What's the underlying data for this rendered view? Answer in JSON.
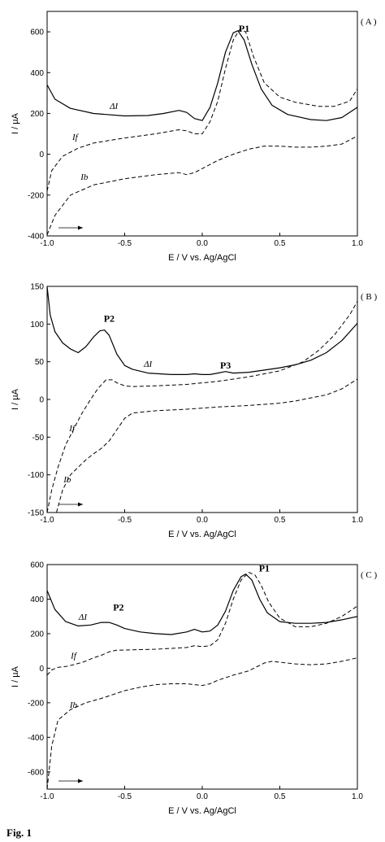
{
  "caption": "Fig. 1",
  "chart_data": [
    {
      "type": "line",
      "panel_label": "( A )",
      "xlabel": "E / V vs. Ag/AgCl",
      "ylabel": "I / µA",
      "xlim": [
        -1.0,
        1.0
      ],
      "ylim": [
        -400,
        700
      ],
      "xticks": [
        "-1.0",
        "-0.5",
        "0.0",
        "0.5",
        "1.0"
      ],
      "yticks": [
        "-400",
        "-200",
        "0",
        "200",
        "400",
        "600"
      ],
      "ytick_values": [
        -400,
        -200,
        0,
        200,
        400,
        600
      ],
      "grid": false,
      "series": [
        {
          "name": "ΔI",
          "style": "solid",
          "x": [
            -1.0,
            -0.95,
            -0.85,
            -0.7,
            -0.5,
            -0.35,
            -0.25,
            -0.15,
            -0.1,
            -0.05,
            0.0,
            0.05,
            0.1,
            0.15,
            0.2,
            0.23,
            0.27,
            0.32,
            0.38,
            0.45,
            0.55,
            0.7,
            0.8,
            0.9,
            1.0
          ],
          "y": [
            340,
            270,
            225,
            200,
            188,
            190,
            200,
            215,
            205,
            175,
            165,
            230,
            350,
            500,
            595,
            605,
            560,
            440,
            320,
            240,
            195,
            170,
            165,
            180,
            230
          ]
        },
        {
          "name": "If",
          "style": "dashed",
          "x": [
            -1.0,
            -0.97,
            -0.9,
            -0.8,
            -0.7,
            -0.5,
            -0.3,
            -0.15,
            -0.1,
            -0.05,
            0.0,
            0.05,
            0.1,
            0.15,
            0.2,
            0.24,
            0.28,
            0.33,
            0.4,
            0.5,
            0.6,
            0.75,
            0.85,
            0.95,
            1.0
          ],
          "y": [
            -180,
            -80,
            -10,
            30,
            55,
            80,
            100,
            120,
            115,
            100,
            100,
            160,
            260,
            420,
            560,
            610,
            600,
            480,
            350,
            280,
            255,
            235,
            235,
            260,
            320
          ]
        },
        {
          "name": "Ib",
          "style": "dashed",
          "x": [
            -1.0,
            -0.95,
            -0.85,
            -0.7,
            -0.5,
            -0.3,
            -0.15,
            -0.1,
            -0.05,
            0.0,
            0.05,
            0.1,
            0.2,
            0.3,
            0.4,
            0.5,
            0.6,
            0.7,
            0.8,
            0.9,
            1.0
          ],
          "y": [
            -395,
            -300,
            -200,
            -150,
            -120,
            -100,
            -90,
            -100,
            -90,
            -70,
            -50,
            -30,
            0,
            25,
            40,
            40,
            35,
            35,
            40,
            50,
            90
          ]
        }
      ],
      "annotations": [
        {
          "text": "P1",
          "x": 0.27,
          "y": 600,
          "bold": true
        },
        {
          "text": "ΔI",
          "x": -0.57,
          "y": 222
        },
        {
          "text": "If",
          "x": -0.82,
          "y": 70
        },
        {
          "text": "Ib",
          "x": -0.76,
          "y": -125
        }
      ]
    },
    {
      "type": "line",
      "panel_label": "( B )",
      "xlabel": "E / V vs. Ag/AgCl",
      "ylabel": "I / µA",
      "xlim": [
        -1.0,
        1.0
      ],
      "ylim": [
        -150,
        150
      ],
      "xticks": [
        "-1.0",
        "-0.5",
        "0.0",
        "0.5",
        "1.0"
      ],
      "yticks": [
        "-150",
        "-100",
        "-50",
        "0",
        "50",
        "100",
        "150"
      ],
      "ytick_values": [
        -150,
        -100,
        -50,
        0,
        50,
        100,
        150
      ],
      "grid": false,
      "series": [
        {
          "name": "ΔI",
          "style": "solid",
          "x": [
            -1.0,
            -0.98,
            -0.95,
            -0.9,
            -0.85,
            -0.8,
            -0.75,
            -0.7,
            -0.66,
            -0.63,
            -0.6,
            -0.55,
            -0.5,
            -0.45,
            -0.35,
            -0.2,
            -0.1,
            -0.05,
            0.0,
            0.05,
            0.1,
            0.15,
            0.2,
            0.3,
            0.4,
            0.5,
            0.6,
            0.7,
            0.8,
            0.9,
            1.0
          ],
          "y": [
            150,
            112,
            90,
            75,
            67,
            62,
            70,
            83,
            91,
            92,
            85,
            60,
            45,
            40,
            35,
            33,
            33,
            34,
            33,
            33,
            35,
            37,
            35,
            36,
            39,
            42,
            46,
            52,
            62,
            78,
            101
          ]
        },
        {
          "name": "If",
          "style": "dashed",
          "x": [
            -1.0,
            -0.97,
            -0.93,
            -0.88,
            -0.83,
            -0.78,
            -0.72,
            -0.67,
            -0.62,
            -0.58,
            -0.55,
            -0.5,
            -0.45,
            -0.3,
            -0.1,
            0.1,
            0.3,
            0.5,
            0.65,
            0.75,
            0.85,
            0.95,
            1.0
          ],
          "y": [
            -150,
            -120,
            -90,
            -60,
            -40,
            -20,
            0,
            15,
            26,
            26,
            22,
            18,
            17,
            18,
            20,
            24,
            30,
            38,
            50,
            65,
            85,
            112,
            130
          ]
        },
        {
          "name": "Ib",
          "style": "dashed",
          "x": [
            -0.94,
            -0.9,
            -0.85,
            -0.8,
            -0.75,
            -0.7,
            -0.65,
            -0.6,
            -0.55,
            -0.5,
            -0.45,
            -0.4,
            -0.3,
            -0.1,
            0.1,
            0.3,
            0.5,
            0.6,
            0.7,
            0.8,
            0.9,
            1.0
          ],
          "y": [
            -150,
            -120,
            -100,
            -90,
            -80,
            -72,
            -65,
            -55,
            -40,
            -25,
            -18,
            -17,
            -15,
            -13,
            -10,
            -8,
            -5,
            -2,
            2,
            6,
            14,
            27
          ]
        }
      ],
      "annotations": [
        {
          "text": "P2",
          "x": -0.6,
          "y": 103,
          "bold": true
        },
        {
          "text": "P3",
          "x": 0.15,
          "y": 41,
          "bold": true
        },
        {
          "text": "ΔI",
          "x": -0.35,
          "y": 43
        },
        {
          "text": "If",
          "x": -0.84,
          "y": -42
        },
        {
          "text": "Ib",
          "x": -0.87,
          "y": -110
        }
      ]
    },
    {
      "type": "line",
      "panel_label": "( C )",
      "xlabel": "E / V vs. Ag/AgCl",
      "ylabel": "I / µA",
      "xlim": [
        -1.0,
        1.0
      ],
      "ylim": [
        -700,
        600
      ],
      "xticks": [
        "-1.0",
        "-0.5",
        "0.0",
        "0.5",
        "1.0"
      ],
      "yticks": [
        "-600",
        "-400",
        "-200",
        "0",
        "200",
        "400",
        "600"
      ],
      "ytick_values": [
        -600,
        -400,
        -200,
        0,
        200,
        400,
        600
      ],
      "grid": false,
      "series": [
        {
          "name": "ΔI",
          "style": "solid",
          "x": [
            -1.0,
            -0.95,
            -0.88,
            -0.8,
            -0.72,
            -0.65,
            -0.6,
            -0.55,
            -0.5,
            -0.4,
            -0.3,
            -0.2,
            -0.1,
            -0.05,
            0.0,
            0.05,
            0.1,
            0.15,
            0.2,
            0.25,
            0.28,
            0.32,
            0.37,
            0.42,
            0.5,
            0.6,
            0.7,
            0.8,
            0.9,
            1.0
          ],
          "y": [
            450,
            340,
            270,
            245,
            250,
            265,
            265,
            250,
            230,
            210,
            200,
            195,
            210,
            225,
            210,
            215,
            250,
            330,
            450,
            530,
            545,
            510,
            400,
            320,
            270,
            260,
            260,
            265,
            280,
            300
          ]
        },
        {
          "name": "If",
          "style": "dashed",
          "x": [
            -1.0,
            -0.97,
            -0.93,
            -0.88,
            -0.83,
            -0.77,
            -0.7,
            -0.65,
            -0.6,
            -0.55,
            -0.5,
            -0.4,
            -0.3,
            -0.2,
            -0.1,
            -0.05,
            0.0,
            0.05,
            0.1,
            0.15,
            0.2,
            0.25,
            0.3,
            0.34,
            0.38,
            0.43,
            0.5,
            0.6,
            0.7,
            0.8,
            0.9,
            1.0
          ],
          "y": [
            -40,
            -10,
            5,
            10,
            20,
            35,
            60,
            75,
            95,
            105,
            105,
            108,
            110,
            115,
            120,
            130,
            125,
            130,
            165,
            260,
            400,
            510,
            555,
            540,
            480,
            380,
            290,
            240,
            240,
            260,
            300,
            360
          ]
        },
        {
          "name": "Ib",
          "style": "dashed",
          "x": [
            -1.0,
            -0.97,
            -0.93,
            -0.85,
            -0.75,
            -0.65,
            -0.55,
            -0.5,
            -0.4,
            -0.3,
            -0.2,
            -0.1,
            -0.05,
            0.0,
            0.05,
            0.1,
            0.2,
            0.3,
            0.4,
            0.45,
            0.5,
            0.6,
            0.7,
            0.8,
            0.9,
            1.0
          ],
          "y": [
            -700,
            -450,
            -300,
            -240,
            -200,
            -175,
            -145,
            -130,
            -110,
            -95,
            -90,
            -90,
            -95,
            -100,
            -90,
            -70,
            -40,
            -15,
            30,
            40,
            35,
            25,
            20,
            25,
            40,
            60
          ]
        }
      ],
      "annotations": [
        {
          "text": "P1",
          "x": 0.4,
          "y": 560,
          "bold": true
        },
        {
          "text": "P2",
          "x": -0.54,
          "y": 335,
          "bold": true
        },
        {
          "text": "ΔI",
          "x": -0.77,
          "y": 280
        },
        {
          "text": "If",
          "x": -0.83,
          "y": 55
        },
        {
          "text": "Ib",
          "x": -0.83,
          "y": -230
        }
      ]
    }
  ]
}
